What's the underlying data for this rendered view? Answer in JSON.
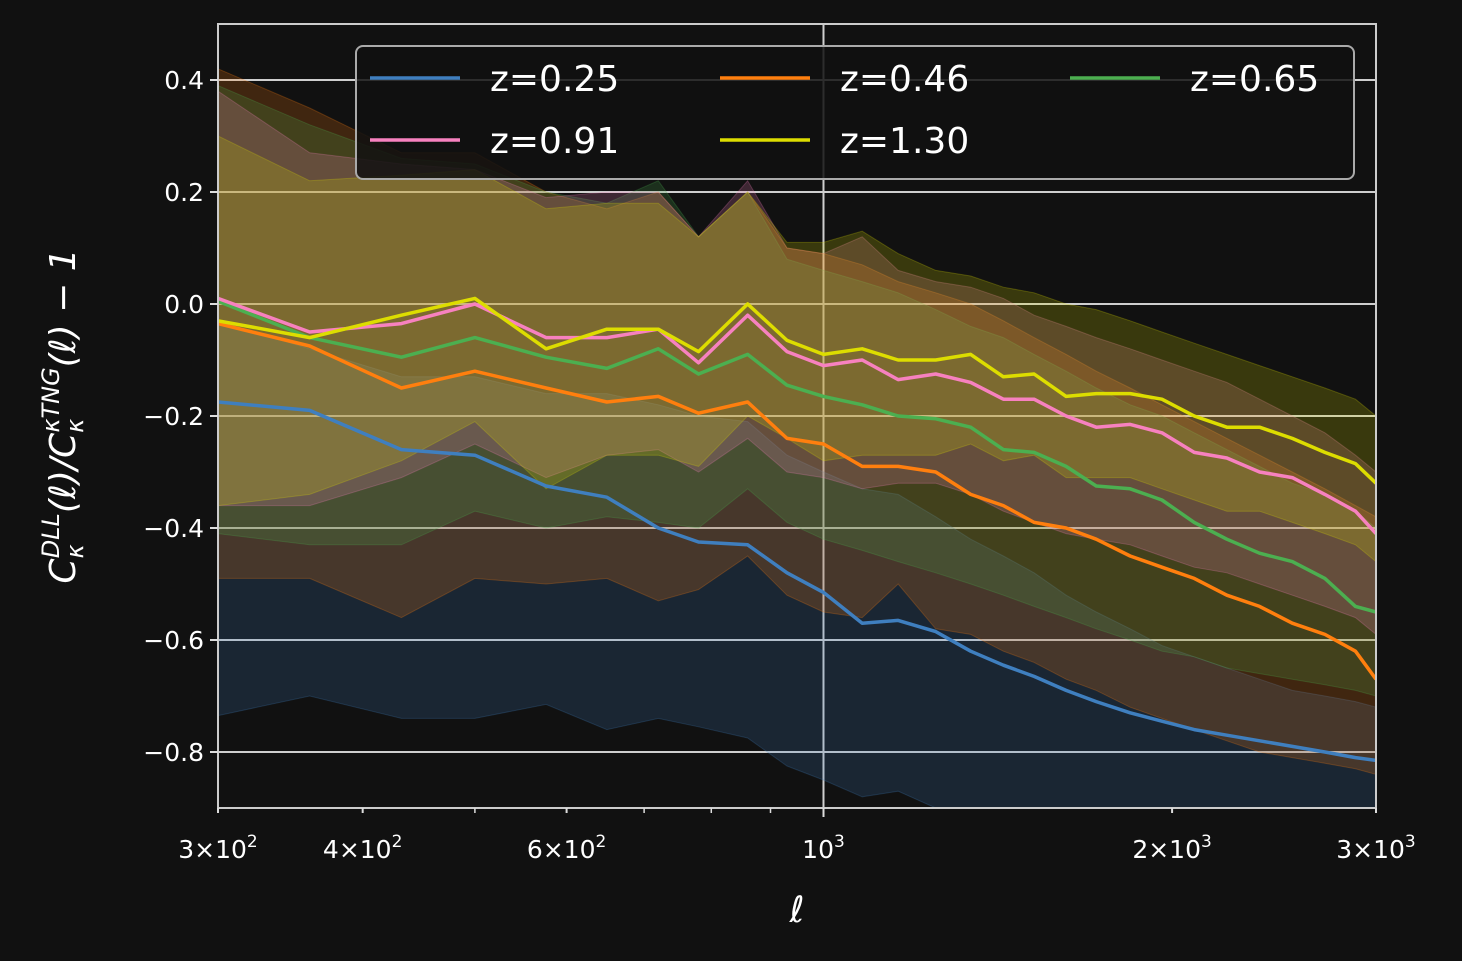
{
  "chart_data": {
    "type": "line",
    "xlabel": "ℓ",
    "ylabel": "C_κ^DLL(ℓ)/C_κ^κTNG(ℓ) − 1",
    "xscale": "log",
    "xlim": [
      300,
      3000
    ],
    "ylim": [
      -0.9,
      0.5
    ],
    "grid": true,
    "legend_position": "top-right",
    "legend_columns": 3,
    "background": "#111111",
    "yticks": [
      -0.8,
      -0.6,
      -0.4,
      -0.2,
      0.0,
      0.2,
      0.4
    ],
    "ytick_labels": [
      "−0.8",
      "−0.6",
      "−0.4",
      "−0.2",
      "0.0",
      "0.2",
      "0.4"
    ],
    "xticks": [
      {
        "value": 300,
        "mant": "3",
        "exp": "2"
      },
      {
        "value": 400,
        "mant": "4",
        "exp": "2"
      },
      {
        "value": 600,
        "mant": "6",
        "exp": "2"
      },
      {
        "value": 1000,
        "mant": "",
        "exp": "3"
      },
      {
        "value": 2000,
        "mant": "2",
        "exp": "3"
      },
      {
        "value": 3000,
        "mant": "3",
        "exp": "3"
      }
    ],
    "x": [
      300,
      360,
      432,
      500,
      576,
      650,
      720,
      780,
      860,
      930,
      1000,
      1080,
      1160,
      1250,
      1340,
      1430,
      1520,
      1620,
      1720,
      1840,
      1960,
      2090,
      2230,
      2380,
      2540,
      2710,
      2880,
      3000
    ],
    "series": [
      {
        "name": "z=0.25",
        "color": "#3f7fbf",
        "values": [
          -0.175,
          -0.19,
          -0.26,
          -0.27,
          -0.325,
          -0.345,
          -0.4,
          -0.425,
          -0.43,
          -0.48,
          -0.515,
          -0.57,
          -0.565,
          -0.585,
          -0.62,
          -0.645,
          -0.665,
          -0.69,
          -0.71,
          -0.73,
          -0.745,
          -0.76,
          -0.77,
          -0.78,
          -0.79,
          -0.8,
          -0.81,
          -0.815
        ],
        "upper": [
          -0.03,
          -0.08,
          -0.13,
          -0.13,
          -0.16,
          -0.16,
          -0.18,
          -0.2,
          -0.21,
          -0.27,
          -0.3,
          -0.33,
          -0.34,
          -0.38,
          -0.42,
          -0.45,
          -0.48,
          -0.52,
          -0.55,
          -0.58,
          -0.61,
          -0.63,
          -0.65,
          -0.67,
          -0.69,
          -0.7,
          -0.71,
          -0.72
        ],
        "lower": [
          -0.735,
          -0.7,
          -0.74,
          -0.74,
          -0.715,
          -0.76,
          -0.74,
          -0.755,
          -0.775,
          -0.825,
          -0.85,
          -0.88,
          -0.87,
          -0.9,
          -0.93,
          -0.95,
          -0.97,
          -0.98,
          -1.0,
          -1.0,
          -1.0,
          -1.0,
          -1.0,
          -1.0,
          -1.0,
          -1.0,
          -1.0,
          -1.0
        ]
      },
      {
        "name": "z=0.46",
        "color": "#ff7f0e",
        "values": [
          -0.035,
          -0.075,
          -0.15,
          -0.12,
          -0.15,
          -0.175,
          -0.165,
          -0.195,
          -0.175,
          -0.24,
          -0.25,
          -0.29,
          -0.29,
          -0.3,
          -0.34,
          -0.36,
          -0.39,
          -0.4,
          -0.42,
          -0.45,
          -0.47,
          -0.49,
          -0.52,
          -0.54,
          -0.57,
          -0.59,
          -0.62,
          -0.67
        ],
        "upper": [
          0.42,
          0.35,
          0.27,
          0.27,
          0.2,
          0.17,
          0.2,
          0.12,
          0.2,
          0.1,
          0.09,
          0.07,
          0.04,
          0.02,
          -0.0,
          -0.03,
          -0.06,
          -0.09,
          -0.12,
          -0.15,
          -0.18,
          -0.21,
          -0.24,
          -0.27,
          -0.3,
          -0.33,
          -0.36,
          -0.38
        ],
        "lower": [
          -0.49,
          -0.49,
          -0.56,
          -0.49,
          -0.5,
          -0.49,
          -0.53,
          -0.51,
          -0.45,
          -0.52,
          -0.55,
          -0.56,
          -0.5,
          -0.58,
          -0.59,
          -0.62,
          -0.64,
          -0.67,
          -0.69,
          -0.72,
          -0.74,
          -0.76,
          -0.78,
          -0.8,
          -0.81,
          -0.82,
          -0.83,
          -0.84
        ]
      },
      {
        "name": "z=0.65",
        "color": "#4caf50",
        "values": [
          0.005,
          -0.06,
          -0.095,
          -0.06,
          -0.095,
          -0.115,
          -0.08,
          -0.125,
          -0.09,
          -0.145,
          -0.165,
          -0.18,
          -0.2,
          -0.205,
          -0.22,
          -0.26,
          -0.265,
          -0.29,
          -0.325,
          -0.33,
          -0.35,
          -0.39,
          -0.42,
          -0.445,
          -0.46,
          -0.49,
          -0.54,
          -0.55
        ],
        "upper": [
          0.39,
          0.32,
          0.26,
          0.25,
          0.2,
          0.18,
          0.22,
          0.12,
          0.2,
          0.08,
          0.06,
          0.04,
          0.02,
          -0.01,
          -0.04,
          -0.06,
          -0.09,
          -0.12,
          -0.15,
          -0.18,
          -0.2,
          -0.23,
          -0.26,
          -0.29,
          -0.32,
          -0.34,
          -0.37,
          -0.4
        ],
        "lower": [
          -0.41,
          -0.43,
          -0.43,
          -0.37,
          -0.4,
          -0.38,
          -0.39,
          -0.4,
          -0.33,
          -0.39,
          -0.42,
          -0.44,
          -0.46,
          -0.48,
          -0.5,
          -0.52,
          -0.54,
          -0.56,
          -0.58,
          -0.6,
          -0.62,
          -0.63,
          -0.65,
          -0.66,
          -0.67,
          -0.68,
          -0.69,
          -0.7
        ]
      },
      {
        "name": "z=0.91",
        "color": "#f781bf",
        "values": [
          0.01,
          -0.05,
          -0.035,
          0.0,
          -0.06,
          -0.06,
          -0.045,
          -0.105,
          -0.02,
          -0.085,
          -0.11,
          -0.1,
          -0.135,
          -0.125,
          -0.14,
          -0.17,
          -0.17,
          -0.2,
          -0.22,
          -0.215,
          -0.23,
          -0.265,
          -0.275,
          -0.3,
          -0.31,
          -0.34,
          -0.37,
          -0.41
        ],
        "upper": [
          0.38,
          0.27,
          0.25,
          0.24,
          0.19,
          0.2,
          0.2,
          0.12,
          0.22,
          0.1,
          0.09,
          0.12,
          0.06,
          0.04,
          0.03,
          0.01,
          -0.02,
          -0.04,
          -0.06,
          -0.08,
          -0.1,
          -0.12,
          -0.14,
          -0.17,
          -0.2,
          -0.23,
          -0.27,
          -0.3
        ],
        "lower": [
          -0.36,
          -0.36,
          -0.31,
          -0.25,
          -0.31,
          -0.27,
          -0.26,
          -0.3,
          -0.24,
          -0.3,
          -0.31,
          -0.33,
          -0.32,
          -0.32,
          -0.34,
          -0.37,
          -0.39,
          -0.41,
          -0.42,
          -0.43,
          -0.45,
          -0.47,
          -0.48,
          -0.5,
          -0.52,
          -0.54,
          -0.56,
          -0.59
        ]
      },
      {
        "name": "z=1.30",
        "color": "#dddd00",
        "values": [
          -0.03,
          -0.06,
          -0.02,
          0.01,
          -0.08,
          -0.045,
          -0.045,
          -0.085,
          0.0,
          -0.065,
          -0.09,
          -0.08,
          -0.1,
          -0.1,
          -0.09,
          -0.13,
          -0.125,
          -0.165,
          -0.16,
          -0.16,
          -0.17,
          -0.2,
          -0.22,
          -0.22,
          -0.24,
          -0.265,
          -0.285,
          -0.32
        ],
        "upper": [
          0.3,
          0.22,
          0.23,
          0.24,
          0.17,
          0.18,
          0.18,
          0.12,
          0.2,
          0.11,
          0.11,
          0.13,
          0.09,
          0.06,
          0.05,
          0.03,
          0.02,
          0.0,
          -0.01,
          -0.03,
          -0.05,
          -0.07,
          -0.09,
          -0.11,
          -0.13,
          -0.15,
          -0.17,
          -0.2
        ],
        "lower": [
          -0.36,
          -0.34,
          -0.28,
          -0.21,
          -0.33,
          -0.27,
          -0.27,
          -0.29,
          -0.2,
          -0.24,
          -0.28,
          -0.27,
          -0.27,
          -0.27,
          -0.25,
          -0.28,
          -0.27,
          -0.31,
          -0.31,
          -0.31,
          -0.33,
          -0.35,
          -0.37,
          -0.37,
          -0.39,
          -0.41,
          -0.43,
          -0.46
        ]
      }
    ]
  }
}
